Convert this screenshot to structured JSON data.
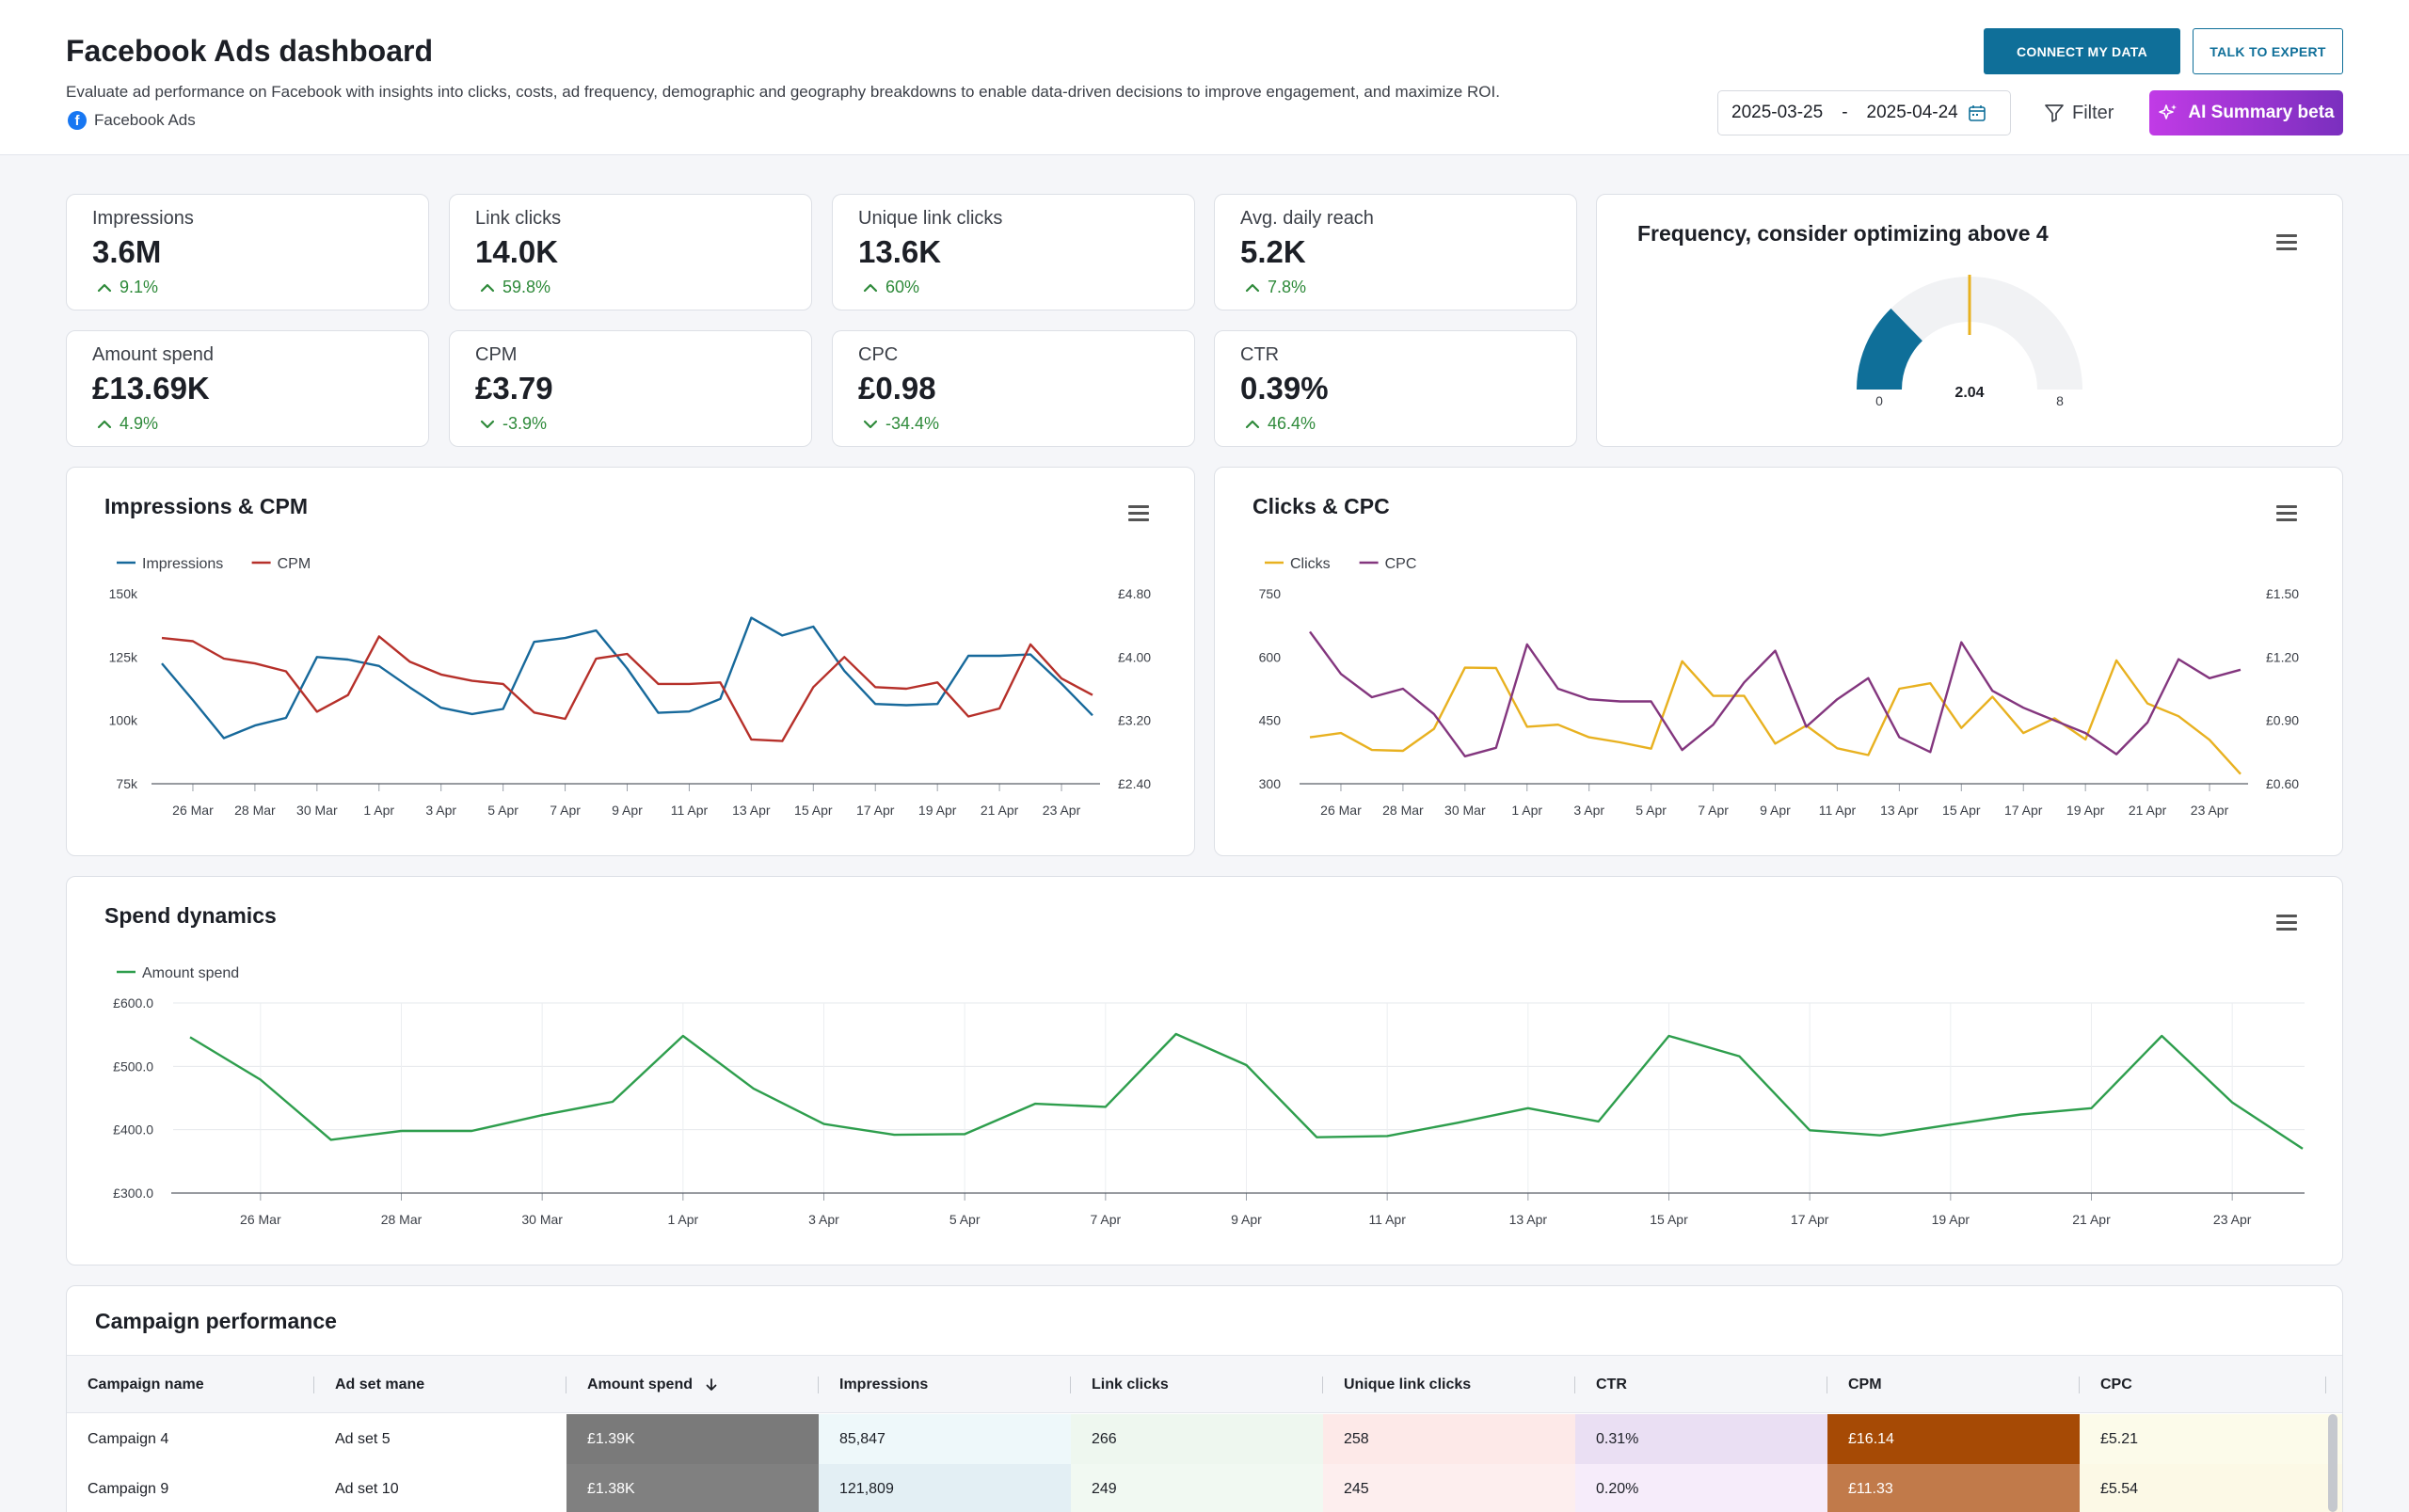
{
  "header": {
    "title": "Facebook Ads dashboard",
    "subtitle": "Evaluate ad performance on Facebook with insights into clicks, costs, ad frequency, demographic and geography breakdowns to enable data-driven decisions to improve engagement, and maximize ROI.",
    "source": "Facebook Ads",
    "connect_label": "CONNECT MY DATA",
    "expert_label": "TALK TO EXPERT",
    "date_start": "2025-03-25",
    "date_sep": "-",
    "date_end": "2025-04-24",
    "filter_label": "Filter",
    "ai_label": "AI Summary beta",
    "accent": "#0f6f99",
    "ai_gradient_start": "#c13be6",
    "ai_gradient_end": "#7a2fbe"
  },
  "kpis": [
    {
      "label": "Impressions",
      "value": "3.6M",
      "delta": "9.1%",
      "dir": "up"
    },
    {
      "label": "Link clicks",
      "value": "14.0K",
      "delta": "59.8%",
      "dir": "up"
    },
    {
      "label": "Unique link clicks",
      "value": "13.6K",
      "delta": "60%",
      "dir": "up"
    },
    {
      "label": "Avg. daily reach",
      "value": "5.2K",
      "delta": "7.8%",
      "dir": "up"
    },
    {
      "label": "Amount spend",
      "value": "£13.69K",
      "delta": "4.9%",
      "dir": "up"
    },
    {
      "label": "CPM",
      "value": "£3.79",
      "delta": "-3.9%",
      "dir": "down"
    },
    {
      "label": "CPC",
      "value": "£0.98",
      "delta": "-34.4%",
      "dir": "down"
    },
    {
      "label": "CTR",
      "value": "0.39%",
      "delta": "46.4%",
      "dir": "up"
    }
  ],
  "gauge": {
    "title": "Frequency, consider optimizing above 4",
    "value": 2.04,
    "value_label": "2.04",
    "min": 0,
    "max": 8,
    "threshold": 4,
    "min_label": "0",
    "max_label": "8",
    "fill_color": "#0f6f99",
    "threshold_color": "#e8b120"
  },
  "chart_data": [
    {
      "type": "line",
      "title": "Impressions & CPM",
      "x": [
        "25 Mar",
        "26 Mar",
        "27 Mar",
        "28 Mar",
        "29 Mar",
        "30 Mar",
        "31 Mar",
        "1 Apr",
        "2 Apr",
        "3 Apr",
        "4 Apr",
        "5 Apr",
        "6 Apr",
        "7 Apr",
        "8 Apr",
        "9 Apr",
        "10 Apr",
        "11 Apr",
        "12 Apr",
        "13 Apr",
        "14 Apr",
        "15 Apr",
        "16 Apr",
        "17 Apr",
        "18 Apr",
        "19 Apr",
        "20 Apr",
        "21 Apr",
        "22 Apr",
        "23 Apr",
        "24 Apr"
      ],
      "tick_labels": [
        "26 Mar",
        "28 Mar",
        "30 Mar",
        "1 Apr",
        "3 Apr",
        "5 Apr",
        "7 Apr",
        "9 Apr",
        "11 Apr",
        "13 Apr",
        "15 Apr",
        "17 Apr",
        "19 Apr",
        "21 Apr",
        "23 Apr"
      ],
      "y_left": {
        "ticks": [
          "150k",
          "125k",
          "100k",
          "75k"
        ],
        "range": [
          75000,
          150000
        ]
      },
      "y_right": {
        "ticks": [
          "£4.80",
          "£4.00",
          "£3.20",
          "£2.40"
        ],
        "range": [
          2.4,
          4.8
        ]
      },
      "series": [
        {
          "name": "Impressions",
          "axis": "left",
          "color": "#17699b",
          "values": [
            122500,
            108000,
            93000,
            98000,
            101000,
            125000,
            124000,
            121500,
            113000,
            105000,
            102500,
            104500,
            131000,
            132500,
            135500,
            120500,
            103000,
            103500,
            108500,
            140500,
            133500,
            137000,
            119500,
            106500,
            106000,
            106500,
            125500,
            125500,
            126000,
            114500,
            102000
          ]
        },
        {
          "name": "CPM",
          "axis": "right",
          "color": "#b6302a",
          "values": [
            4.24,
            4.2,
            3.98,
            3.92,
            3.82,
            3.31,
            3.52,
            4.26,
            3.94,
            3.78,
            3.7,
            3.66,
            3.3,
            3.22,
            3.98,
            4.04,
            3.66,
            3.66,
            3.68,
            2.96,
            2.94,
            3.62,
            4.0,
            3.62,
            3.6,
            3.68,
            3.25,
            3.35,
            4.16,
            3.73,
            3.52
          ]
        }
      ]
    },
    {
      "type": "line",
      "title": "Clicks & CPC",
      "x": [
        "25 Mar",
        "26 Mar",
        "27 Mar",
        "28 Mar",
        "29 Mar",
        "30 Mar",
        "31 Mar",
        "1 Apr",
        "2 Apr",
        "3 Apr",
        "4 Apr",
        "5 Apr",
        "6 Apr",
        "7 Apr",
        "8 Apr",
        "9 Apr",
        "10 Apr",
        "11 Apr",
        "12 Apr",
        "13 Apr",
        "14 Apr",
        "15 Apr",
        "16 Apr",
        "17 Apr",
        "18 Apr",
        "19 Apr",
        "20 Apr",
        "21 Apr",
        "22 Apr",
        "23 Apr",
        "24 Apr"
      ],
      "tick_labels": [
        "26 Mar",
        "28 Mar",
        "30 Mar",
        "1 Apr",
        "3 Apr",
        "5 Apr",
        "7 Apr",
        "9 Apr",
        "11 Apr",
        "13 Apr",
        "15 Apr",
        "17 Apr",
        "19 Apr",
        "21 Apr",
        "23 Apr"
      ],
      "y_left": {
        "ticks": [
          "750",
          "600",
          "450",
          "300"
        ],
        "range": [
          300,
          750
        ]
      },
      "y_right": {
        "ticks": [
          "£1.50",
          "£1.20",
          "£0.90",
          "£0.60"
        ],
        "range": [
          0.6,
          1.5
        ]
      },
      "series": [
        {
          "name": "Clicks",
          "axis": "left",
          "color": "#e8b120",
          "values": [
            410,
            420,
            380,
            378,
            430,
            575,
            574,
            435,
            440,
            410,
            398,
            383,
            590,
            508,
            508,
            395,
            438,
            384,
            368,
            525,
            538,
            432,
            506,
            420,
            455,
            405,
            592,
            490,
            460,
            404,
            323
          ]
        },
        {
          "name": "CPC",
          "axis": "right",
          "color": "#83367e",
          "values": [
            1.32,
            1.12,
            1.01,
            1.05,
            0.93,
            0.73,
            0.77,
            1.26,
            1.05,
            1.0,
            0.99,
            0.99,
            0.76,
            0.88,
            1.08,
            1.23,
            0.87,
            1.0,
            1.1,
            0.82,
            0.75,
            1.27,
            1.04,
            0.96,
            0.9,
            0.84,
            0.74,
            0.89,
            1.19,
            1.1,
            1.14
          ]
        }
      ]
    },
    {
      "type": "line",
      "title": "Spend dynamics",
      "x": [
        "25 Mar",
        "26 Mar",
        "27 Mar",
        "28 Mar",
        "29 Mar",
        "30 Mar",
        "31 Mar",
        "1 Apr",
        "2 Apr",
        "3 Apr",
        "4 Apr",
        "5 Apr",
        "6 Apr",
        "7 Apr",
        "8 Apr",
        "9 Apr",
        "10 Apr",
        "11 Apr",
        "12 Apr",
        "13 Apr",
        "14 Apr",
        "15 Apr",
        "16 Apr",
        "17 Apr",
        "18 Apr",
        "19 Apr",
        "20 Apr",
        "21 Apr",
        "22 Apr",
        "23 Apr",
        "24 Apr"
      ],
      "tick_labels": [
        "26 Mar",
        "28 Mar",
        "30 Mar",
        "1 Apr",
        "3 Apr",
        "5 Apr",
        "7 Apr",
        "9 Apr",
        "11 Apr",
        "13 Apr",
        "15 Apr",
        "17 Apr",
        "19 Apr",
        "21 Apr",
        "23 Apr"
      ],
      "y_left": {
        "ticks": [
          "£600.0",
          "£500.0",
          "£400.0",
          "£300.0"
        ],
        "range": [
          300,
          600
        ]
      },
      "series": [
        {
          "name": "Amount spend",
          "axis": "left",
          "color": "#2e9e4d",
          "values": [
            546,
            479,
            384,
            398,
            398,
            423,
            444,
            548,
            465,
            409,
            392,
            393,
            441,
            436,
            551,
            502,
            388,
            390,
            411,
            434,
            413,
            548,
            516,
            399,
            391,
            408,
            424,
            434,
            548,
            443,
            370
          ]
        }
      ]
    }
  ],
  "table": {
    "title": "Campaign performance",
    "columns": [
      "Campaign name",
      "Ad set mane",
      "Amount spend",
      "Impressions",
      "Link clicks",
      "Unique link clicks",
      "CTR",
      "CPM",
      "CPC"
    ],
    "sort_column": "Amount spend",
    "rows": [
      [
        "Campaign 4",
        "Ad set 5",
        "£1.39K",
        "85,847",
        "266",
        "258",
        "0.31%",
        "£16.14",
        "£5.21"
      ],
      [
        "Campaign 9",
        "Ad set 10",
        "£1.38K",
        "121,809",
        "249",
        "245",
        "0.20%",
        "£11.33",
        "£5.54"
      ]
    ],
    "row_colors": [
      [
        "#ffffff",
        "#ffffff",
        "#7a7a7a",
        "#eef8fa",
        "#eef7ef",
        "#fde9e8",
        "#eadff3",
        "#a64a05",
        "#fcfbea"
      ],
      [
        "#ffffff",
        "#ffffff",
        "#808080",
        "#e3eff4",
        "#f1f9f2",
        "#fdeeee",
        "#f6ecfa",
        "#c17a4a",
        "#fcf9e6"
      ]
    ],
    "row_text_colors": [
      [
        "#1c1f26",
        "#1c1f26",
        "#ffffff",
        "#1c1f26",
        "#1c1f26",
        "#1c1f26",
        "#1c1f26",
        "#ffffff",
        "#1c1f26"
      ],
      [
        "#1c1f26",
        "#1c1f26",
        "#ffffff",
        "#1c1f26",
        "#1c1f26",
        "#1c1f26",
        "#1c1f26",
        "#ffffff",
        "#1c1f26"
      ]
    ]
  }
}
